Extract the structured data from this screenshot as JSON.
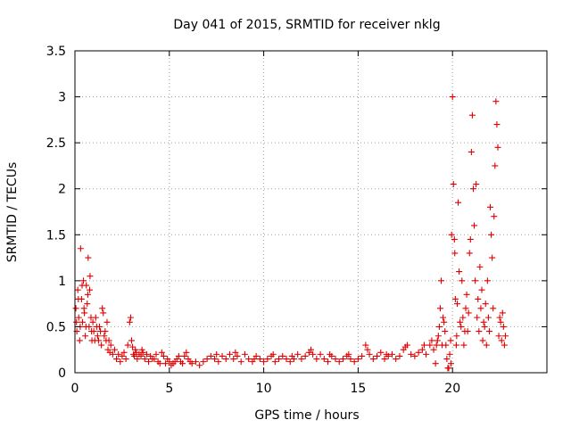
{
  "chart_data": {
    "type": "scatter",
    "title": "Day 041 of 2015, SRMTID for receiver nklg",
    "xlabel": "GPS time / hours",
    "ylabel": "SRMTID / TECUs",
    "xlim": [
      0,
      25
    ],
    "ylim": [
      0,
      3.5
    ],
    "x_ticks": [
      0,
      5,
      10,
      15,
      20
    ],
    "x_tick_labels": [
      "0",
      "5",
      "10",
      "15",
      "20"
    ],
    "y_ticks": [
      0,
      0.5,
      1,
      1.5,
      2,
      2.5,
      3,
      3.5
    ],
    "y_tick_labels": [
      "0",
      "0.5",
      "1",
      "1.5",
      "2",
      "2.5",
      "3",
      "3.5"
    ],
    "grid": true,
    "marker": "+",
    "series": [
      {
        "name": "SRMTID",
        "color": "#e00000",
        "points": [
          [
            0.05,
            0.7
          ],
          [
            0.1,
            0.45
          ],
          [
            0.15,
            0.9
          ],
          [
            0.2,
            0.6
          ],
          [
            0.25,
            0.35
          ],
          [
            0.3,
            1.35
          ],
          [
            0.35,
            0.8
          ],
          [
            0.4,
            0.55
          ],
          [
            0.45,
            1.0
          ],
          [
            0.5,
            0.65
          ],
          [
            0.55,
            0.4
          ],
          [
            0.6,
            0.95
          ],
          [
            0.65,
            0.75
          ],
          [
            0.7,
            1.25
          ],
          [
            0.75,
            0.5
          ],
          [
            0.8,
            1.05
          ],
          [
            0.85,
            0.6
          ],
          [
            0.9,
            0.35
          ],
          [
            0.95,
            0.55
          ],
          [
            1.0,
            0.45
          ],
          [
            1.1,
            0.6
          ],
          [
            1.2,
            0.4
          ],
          [
            1.3,
            0.5
          ],
          [
            1.4,
            0.3
          ],
          [
            1.5,
            0.65
          ],
          [
            1.6,
            0.45
          ],
          [
            1.7,
            0.55
          ],
          [
            1.8,
            0.35
          ],
          [
            1.9,
            0.3
          ],
          [
            2.0,
            0.2
          ],
          [
            2.1,
            0.25
          ],
          [
            2.2,
            0.15
          ],
          [
            2.3,
            0.2
          ],
          [
            2.4,
            0.12
          ],
          [
            2.5,
            0.18
          ],
          [
            2.6,
            0.22
          ],
          [
            2.7,
            0.15
          ],
          [
            2.8,
            0.3
          ],
          [
            2.9,
            0.55
          ],
          [
            3.0,
            0.35
          ],
          [
            3.1,
            0.2
          ],
          [
            3.2,
            0.25
          ],
          [
            3.3,
            0.15
          ],
          [
            3.4,
            0.2
          ],
          [
            3.5,
            0.18
          ],
          [
            3.6,
            0.22
          ],
          [
            3.7,
            0.15
          ],
          [
            3.8,
            0.2
          ],
          [
            3.9,
            0.12
          ],
          [
            4.0,
            0.18
          ],
          [
            4.2,
            0.15
          ],
          [
            4.4,
            0.12
          ],
          [
            4.6,
            0.22
          ],
          [
            4.8,
            0.1
          ],
          [
            5.0,
            0.12
          ],
          [
            5.2,
            0.1
          ],
          [
            5.4,
            0.15
          ],
          [
            5.6,
            0.12
          ],
          [
            5.8,
            0.18
          ],
          [
            6.0,
            0.15
          ],
          [
            6.2,
            0.1
          ],
          [
            6.4,
            0.12
          ],
          [
            6.6,
            0.08
          ],
          [
            6.8,
            0.12
          ],
          [
            7.0,
            0.15
          ],
          [
            7.2,
            0.18
          ],
          [
            7.4,
            0.15
          ],
          [
            7.6,
            0.12
          ],
          [
            7.8,
            0.18
          ],
          [
            8.0,
            0.15
          ],
          [
            8.2,
            0.2
          ],
          [
            8.4,
            0.15
          ],
          [
            8.6,
            0.18
          ],
          [
            8.8,
            0.12
          ],
          [
            9.0,
            0.2
          ],
          [
            9.2,
            0.15
          ],
          [
            9.4,
            0.12
          ],
          [
            9.6,
            0.18
          ],
          [
            9.8,
            0.15
          ],
          [
            10.0,
            0.12
          ],
          [
            10.2,
            0.15
          ],
          [
            10.4,
            0.18
          ],
          [
            10.6,
            0.12
          ],
          [
            10.8,
            0.15
          ],
          [
            11.0,
            0.18
          ],
          [
            11.2,
            0.15
          ],
          [
            11.4,
            0.12
          ],
          [
            11.6,
            0.15
          ],
          [
            11.8,
            0.2
          ],
          [
            12.0,
            0.15
          ],
          [
            12.2,
            0.18
          ],
          [
            12.4,
            0.22
          ],
          [
            12.6,
            0.2
          ],
          [
            12.8,
            0.15
          ],
          [
            13.0,
            0.2
          ],
          [
            13.2,
            0.15
          ],
          [
            13.4,
            0.12
          ],
          [
            13.6,
            0.18
          ],
          [
            13.8,
            0.15
          ],
          [
            14.0,
            0.12
          ],
          [
            14.2,
            0.15
          ],
          [
            14.4,
            0.18
          ],
          [
            14.6,
            0.15
          ],
          [
            14.8,
            0.12
          ],
          [
            15.0,
            0.15
          ],
          [
            15.2,
            0.18
          ],
          [
            15.4,
            0.3
          ],
          [
            15.6,
            0.2
          ],
          [
            15.8,
            0.15
          ],
          [
            16.0,
            0.18
          ],
          [
            16.2,
            0.22
          ],
          [
            16.4,
            0.15
          ],
          [
            16.6,
            0.18
          ],
          [
            16.8,
            0.2
          ],
          [
            17.0,
            0.15
          ],
          [
            17.2,
            0.18
          ],
          [
            17.4,
            0.25
          ],
          [
            17.6,
            0.3
          ],
          [
            17.8,
            0.2
          ],
          [
            18.0,
            0.18
          ],
          [
            18.2,
            0.22
          ],
          [
            18.4,
            0.25
          ],
          [
            18.6,
            0.2
          ],
          [
            18.8,
            0.3
          ],
          [
            19.0,
            0.25
          ],
          [
            19.2,
            0.35
          ],
          [
            19.3,
            0.5
          ],
          [
            19.4,
            1.0
          ],
          [
            19.45,
            0.3
          ],
          [
            19.5,
            0.6
          ],
          [
            19.6,
            0.45
          ],
          [
            19.7,
            0.15
          ],
          [
            19.8,
            0.05
          ],
          [
            19.9,
            0.35
          ],
          [
            19.95,
            1.5
          ],
          [
            20.0,
            3.0
          ],
          [
            20.05,
            2.05
          ],
          [
            20.1,
            1.45
          ],
          [
            20.15,
            0.8
          ],
          [
            20.2,
            0.3
          ],
          [
            20.3,
            1.85
          ],
          [
            20.4,
            0.55
          ],
          [
            20.5,
            1.0
          ],
          [
            20.6,
            0.3
          ],
          [
            20.7,
            0.7
          ],
          [
            20.8,
            0.45
          ],
          [
            20.9,
            1.3
          ],
          [
            21.0,
            2.4
          ],
          [
            21.05,
            2.8
          ],
          [
            21.1,
            2.0
          ],
          [
            21.15,
            1.6
          ],
          [
            21.2,
            1.0
          ],
          [
            21.3,
            0.6
          ],
          [
            21.4,
            0.45
          ],
          [
            21.5,
            0.7
          ],
          [
            21.6,
            0.35
          ],
          [
            21.7,
            0.5
          ],
          [
            21.8,
            0.3
          ],
          [
            21.9,
            0.6
          ],
          [
            22.0,
            1.8
          ],
          [
            22.05,
            1.5
          ],
          [
            22.1,
            1.25
          ],
          [
            22.15,
            0.7
          ],
          [
            22.2,
            1.7
          ],
          [
            22.25,
            2.25
          ],
          [
            22.3,
            2.95
          ],
          [
            22.35,
            2.7
          ],
          [
            22.4,
            2.45
          ],
          [
            22.45,
            0.4
          ],
          [
            22.5,
            0.6
          ],
          [
            22.6,
            0.35
          ],
          [
            22.7,
            0.5
          ],
          [
            22.8,
            0.4
          ],
          [
            19.1,
            0.1
          ],
          [
            19.25,
            0.4
          ],
          [
            19.75,
            0.05
          ],
          [
            19.85,
            0.2
          ],
          [
            20.25,
            0.75
          ],
          [
            20.35,
            1.1
          ],
          [
            20.45,
            0.5
          ],
          [
            20.55,
            0.6
          ],
          [
            20.65,
            0.45
          ],
          [
            20.75,
            0.85
          ],
          [
            20.85,
            0.65
          ],
          [
            20.95,
            1.45
          ],
          [
            21.25,
            2.05
          ],
          [
            21.35,
            0.8
          ],
          [
            21.45,
            1.15
          ],
          [
            21.55,
            0.9
          ],
          [
            21.65,
            0.55
          ],
          [
            21.75,
            0.75
          ],
          [
            21.85,
            1.0
          ],
          [
            21.95,
            0.45
          ],
          [
            22.55,
            0.55
          ],
          [
            22.65,
            0.65
          ],
          [
            22.75,
            0.3
          ],
          [
            0.08,
            0.55
          ],
          [
            0.18,
            0.8
          ],
          [
            0.28,
            0.5
          ],
          [
            0.38,
            0.95
          ],
          [
            0.48,
            0.7
          ],
          [
            0.58,
            0.5
          ],
          [
            0.68,
            0.85
          ],
          [
            0.78,
            0.9
          ],
          [
            0.88,
            0.45
          ],
          [
            1.05,
            0.35
          ],
          [
            1.15,
            0.5
          ],
          [
            1.25,
            0.35
          ],
          [
            1.35,
            0.45
          ],
          [
            1.45,
            0.7
          ],
          [
            1.55,
            0.4
          ],
          [
            1.65,
            0.35
          ],
          [
            1.75,
            0.25
          ],
          [
            1.85,
            0.22
          ],
          [
            2.95,
            0.6
          ],
          [
            3.05,
            0.28
          ],
          [
            3.15,
            0.18
          ],
          [
            3.25,
            0.22
          ],
          [
            3.55,
            0.25
          ],
          [
            4.1,
            0.15
          ],
          [
            4.3,
            0.2
          ],
          [
            4.5,
            0.1
          ],
          [
            4.7,
            0.18
          ],
          [
            4.9,
            0.15
          ],
          [
            5.1,
            0.08
          ],
          [
            5.3,
            0.12
          ],
          [
            5.5,
            0.18
          ],
          [
            5.7,
            0.1
          ],
          [
            5.9,
            0.22
          ],
          [
            6.1,
            0.12
          ],
          [
            7.5,
            0.2
          ],
          [
            8.5,
            0.22
          ],
          [
            9.5,
            0.15
          ],
          [
            10.5,
            0.2
          ],
          [
            11.5,
            0.18
          ],
          [
            12.5,
            0.25
          ],
          [
            13.5,
            0.2
          ],
          [
            14.5,
            0.2
          ],
          [
            15.5,
            0.25
          ],
          [
            16.5,
            0.2
          ],
          [
            17.5,
            0.28
          ],
          [
            18.5,
            0.3
          ],
          [
            18.9,
            0.35
          ],
          [
            19.15,
            0.3
          ],
          [
            19.35,
            0.7
          ],
          [
            19.55,
            0.55
          ],
          [
            19.65,
            0.3
          ],
          [
            19.92,
            0.1
          ],
          [
            20.12,
            1.3
          ],
          [
            20.22,
            0.4
          ]
        ]
      }
    ]
  }
}
